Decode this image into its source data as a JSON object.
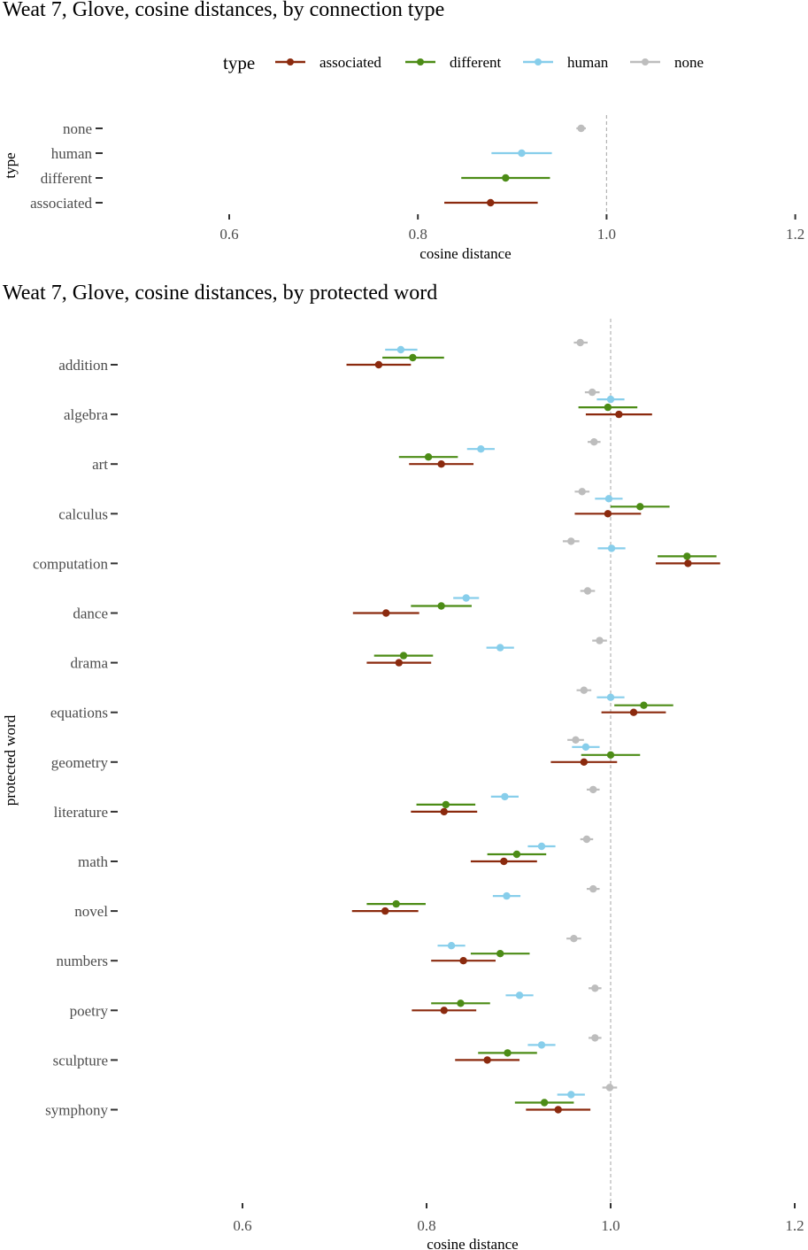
{
  "colors": {
    "associated": "#8b2a0e",
    "different": "#4c8c16",
    "human": "#87ceeb",
    "none": "#bdbdbd",
    "refline": "#b3b3b3",
    "tick": "#333333"
  },
  "chart_data": [
    {
      "type": "scatter",
      "title": "Weat 7, Glove,  cosine distances, by connection type",
      "xlabel": "cosine distance",
      "ylabel": "type",
      "xlim": [
        0.5,
        1.2
      ],
      "xticks": [
        0.6,
        0.8,
        1.0,
        1.2
      ],
      "xtick_labels": [
        "0.6",
        "0.8",
        "1.0",
        "1.2"
      ],
      "reference_line": 1.0,
      "grid": false,
      "legend": {
        "title": "type",
        "placement": "top",
        "entries": [
          "associated",
          "different",
          "human",
          "none"
        ]
      },
      "categories": [
        "none",
        "human",
        "different",
        "associated"
      ],
      "points": [
        {
          "category": "none",
          "type": "none",
          "mean": 0.973,
          "low": 0.968,
          "high": 0.978
        },
        {
          "category": "human",
          "type": "human",
          "mean": 0.91,
          "low": 0.878,
          "high": 0.942
        },
        {
          "category": "different",
          "type": "different",
          "mean": 0.893,
          "low": 0.846,
          "high": 0.94
        },
        {
          "category": "associated",
          "type": "associated",
          "mean": 0.877,
          "low": 0.828,
          "high": 0.927
        }
      ]
    },
    {
      "type": "scatter",
      "title": "Weat 7, Glove, cosine distances, by protected word",
      "xlabel": "cosine distance",
      "ylabel": "protected word",
      "xlim": [
        0.5,
        1.2
      ],
      "xticks": [
        0.6,
        0.8,
        1.0,
        1.2
      ],
      "xtick_labels": [
        "0.6",
        "0.8",
        "1.0",
        "1.2"
      ],
      "reference_line": 1.0,
      "grid": false,
      "series_order": [
        "none",
        "human",
        "different",
        "associated"
      ],
      "categories": [
        "addition",
        "algebra",
        "art",
        "calculus",
        "computation",
        "dance",
        "drama",
        "equations",
        "geometry",
        "literature",
        "math",
        "novel",
        "numbers",
        "poetry",
        "sculpture",
        "symphony"
      ],
      "rows": [
        {
          "word": "addition",
          "none": [
            0.967,
            0.96,
            0.975
          ],
          "human": [
            0.772,
            0.755,
            0.79
          ],
          "different": [
            0.785,
            0.752,
            0.819
          ],
          "associated": [
            0.748,
            0.713,
            0.783
          ]
        },
        {
          "word": "algebra",
          "none": [
            0.98,
            0.972,
            0.988
          ],
          "human": [
            1.0,
            0.985,
            1.015
          ],
          "different": [
            0.997,
            0.965,
            1.029
          ],
          "associated": [
            1.009,
            0.973,
            1.045
          ]
        },
        {
          "word": "art",
          "none": [
            0.982,
            0.975,
            0.989
          ],
          "human": [
            0.859,
            0.844,
            0.874
          ],
          "different": [
            0.802,
            0.77,
            0.834
          ],
          "associated": [
            0.816,
            0.781,
            0.851
          ]
        },
        {
          "word": "calculus",
          "none": [
            0.969,
            0.961,
            0.977
          ],
          "human": [
            0.998,
            0.983,
            1.013
          ],
          "different": [
            1.032,
            1.0,
            1.064
          ],
          "associated": [
            0.997,
            0.961,
            1.033
          ]
        },
        {
          "word": "computation",
          "none": [
            0.957,
            0.948,
            0.966
          ],
          "human": [
            1.001,
            0.986,
            1.016
          ],
          "different": [
            1.083,
            1.051,
            1.115
          ],
          "associated": [
            1.084,
            1.049,
            1.119
          ]
        },
        {
          "word": "dance",
          "none": [
            0.975,
            0.967,
            0.983
          ],
          "human": [
            0.843,
            0.829,
            0.857
          ],
          "different": [
            0.816,
            0.783,
            0.849
          ],
          "associated": [
            0.756,
            0.72,
            0.792
          ]
        },
        {
          "word": "drama",
          "none": [
            0.988,
            0.98,
            0.996
          ],
          "human": [
            0.88,
            0.865,
            0.895
          ],
          "different": [
            0.775,
            0.743,
            0.807
          ],
          "associated": [
            0.77,
            0.735,
            0.805
          ]
        },
        {
          "word": "equations",
          "none": [
            0.971,
            0.963,
            0.979
          ],
          "human": [
            1.0,
            0.985,
            1.015
          ],
          "different": [
            1.036,
            1.004,
            1.068
          ],
          "associated": [
            1.025,
            0.99,
            1.06
          ]
        },
        {
          "word": "geometry",
          "none": [
            0.962,
            0.953,
            0.971
          ],
          "human": [
            0.973,
            0.958,
            0.988
          ],
          "different": [
            1.0,
            0.968,
            1.032
          ],
          "associated": [
            0.971,
            0.935,
            1.007
          ]
        },
        {
          "word": "literature",
          "none": [
            0.981,
            0.974,
            0.988
          ],
          "human": [
            0.885,
            0.87,
            0.9
          ],
          "different": [
            0.821,
            0.789,
            0.853
          ],
          "associated": [
            0.819,
            0.783,
            0.855
          ]
        },
        {
          "word": "math",
          "none": [
            0.974,
            0.967,
            0.981
          ],
          "human": [
            0.925,
            0.91,
            0.94
          ],
          "different": [
            0.898,
            0.866,
            0.93
          ],
          "associated": [
            0.884,
            0.848,
            0.92
          ]
        },
        {
          "word": "novel",
          "none": [
            0.981,
            0.974,
            0.988
          ],
          "human": [
            0.887,
            0.872,
            0.902
          ],
          "different": [
            0.767,
            0.735,
            0.799
          ],
          "associated": [
            0.755,
            0.719,
            0.791
          ]
        },
        {
          "word": "numbers",
          "none": [
            0.96,
            0.952,
            0.968
          ],
          "human": [
            0.827,
            0.812,
            0.842
          ],
          "different": [
            0.88,
            0.848,
            0.912
          ],
          "associated": [
            0.84,
            0.805,
            0.875
          ]
        },
        {
          "word": "poetry",
          "none": [
            0.983,
            0.976,
            0.99
          ],
          "human": [
            0.901,
            0.886,
            0.916
          ],
          "different": [
            0.837,
            0.805,
            0.869
          ],
          "associated": [
            0.819,
            0.784,
            0.854
          ]
        },
        {
          "word": "sculpture",
          "none": [
            0.983,
            0.976,
            0.99
          ],
          "human": [
            0.925,
            0.91,
            0.94
          ],
          "different": [
            0.888,
            0.856,
            0.92
          ],
          "associated": [
            0.866,
            0.831,
            0.901
          ]
        },
        {
          "word": "symphony",
          "none": [
            0.999,
            0.991,
            1.007
          ],
          "human": [
            0.957,
            0.942,
            0.972
          ],
          "different": [
            0.928,
            0.896,
            0.96
          ],
          "associated": [
            0.943,
            0.908,
            0.978
          ]
        }
      ]
    }
  ]
}
